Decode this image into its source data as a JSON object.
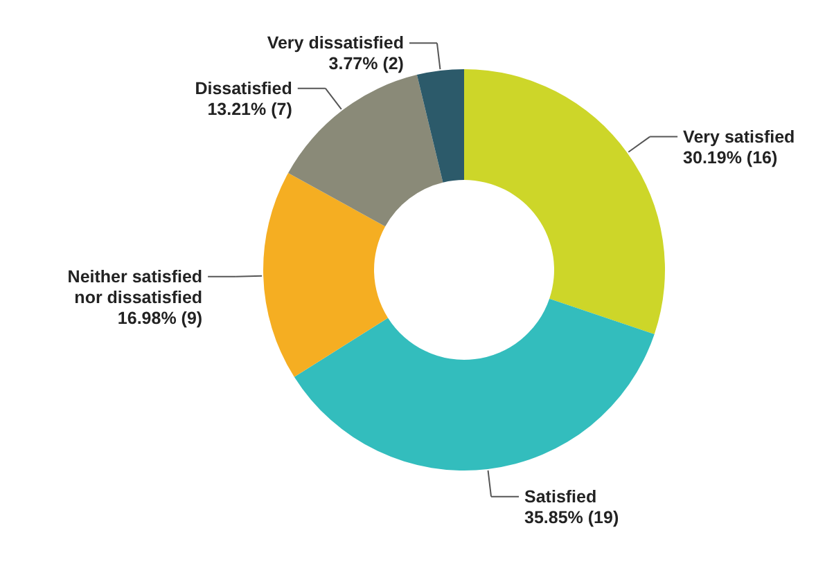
{
  "chart_data": {
    "type": "donut",
    "categories": [
      "Very satisfied",
      "Satisfied",
      "Neither satisfied nor dissatisfied",
      "Dissatisfied",
      "Very dissatisfied"
    ],
    "values": [
      16,
      19,
      9,
      7,
      2
    ],
    "colors": [
      "#cdd629",
      "#33bdbd",
      "#f5ae22",
      "#8a8a78",
      "#2c5a6a"
    ],
    "value_labels": [
      "30.19% (16)",
      "35.85% (19)",
      "16.98% (9)",
      "13.21% (7)",
      "3.77% (2)"
    ]
  }
}
